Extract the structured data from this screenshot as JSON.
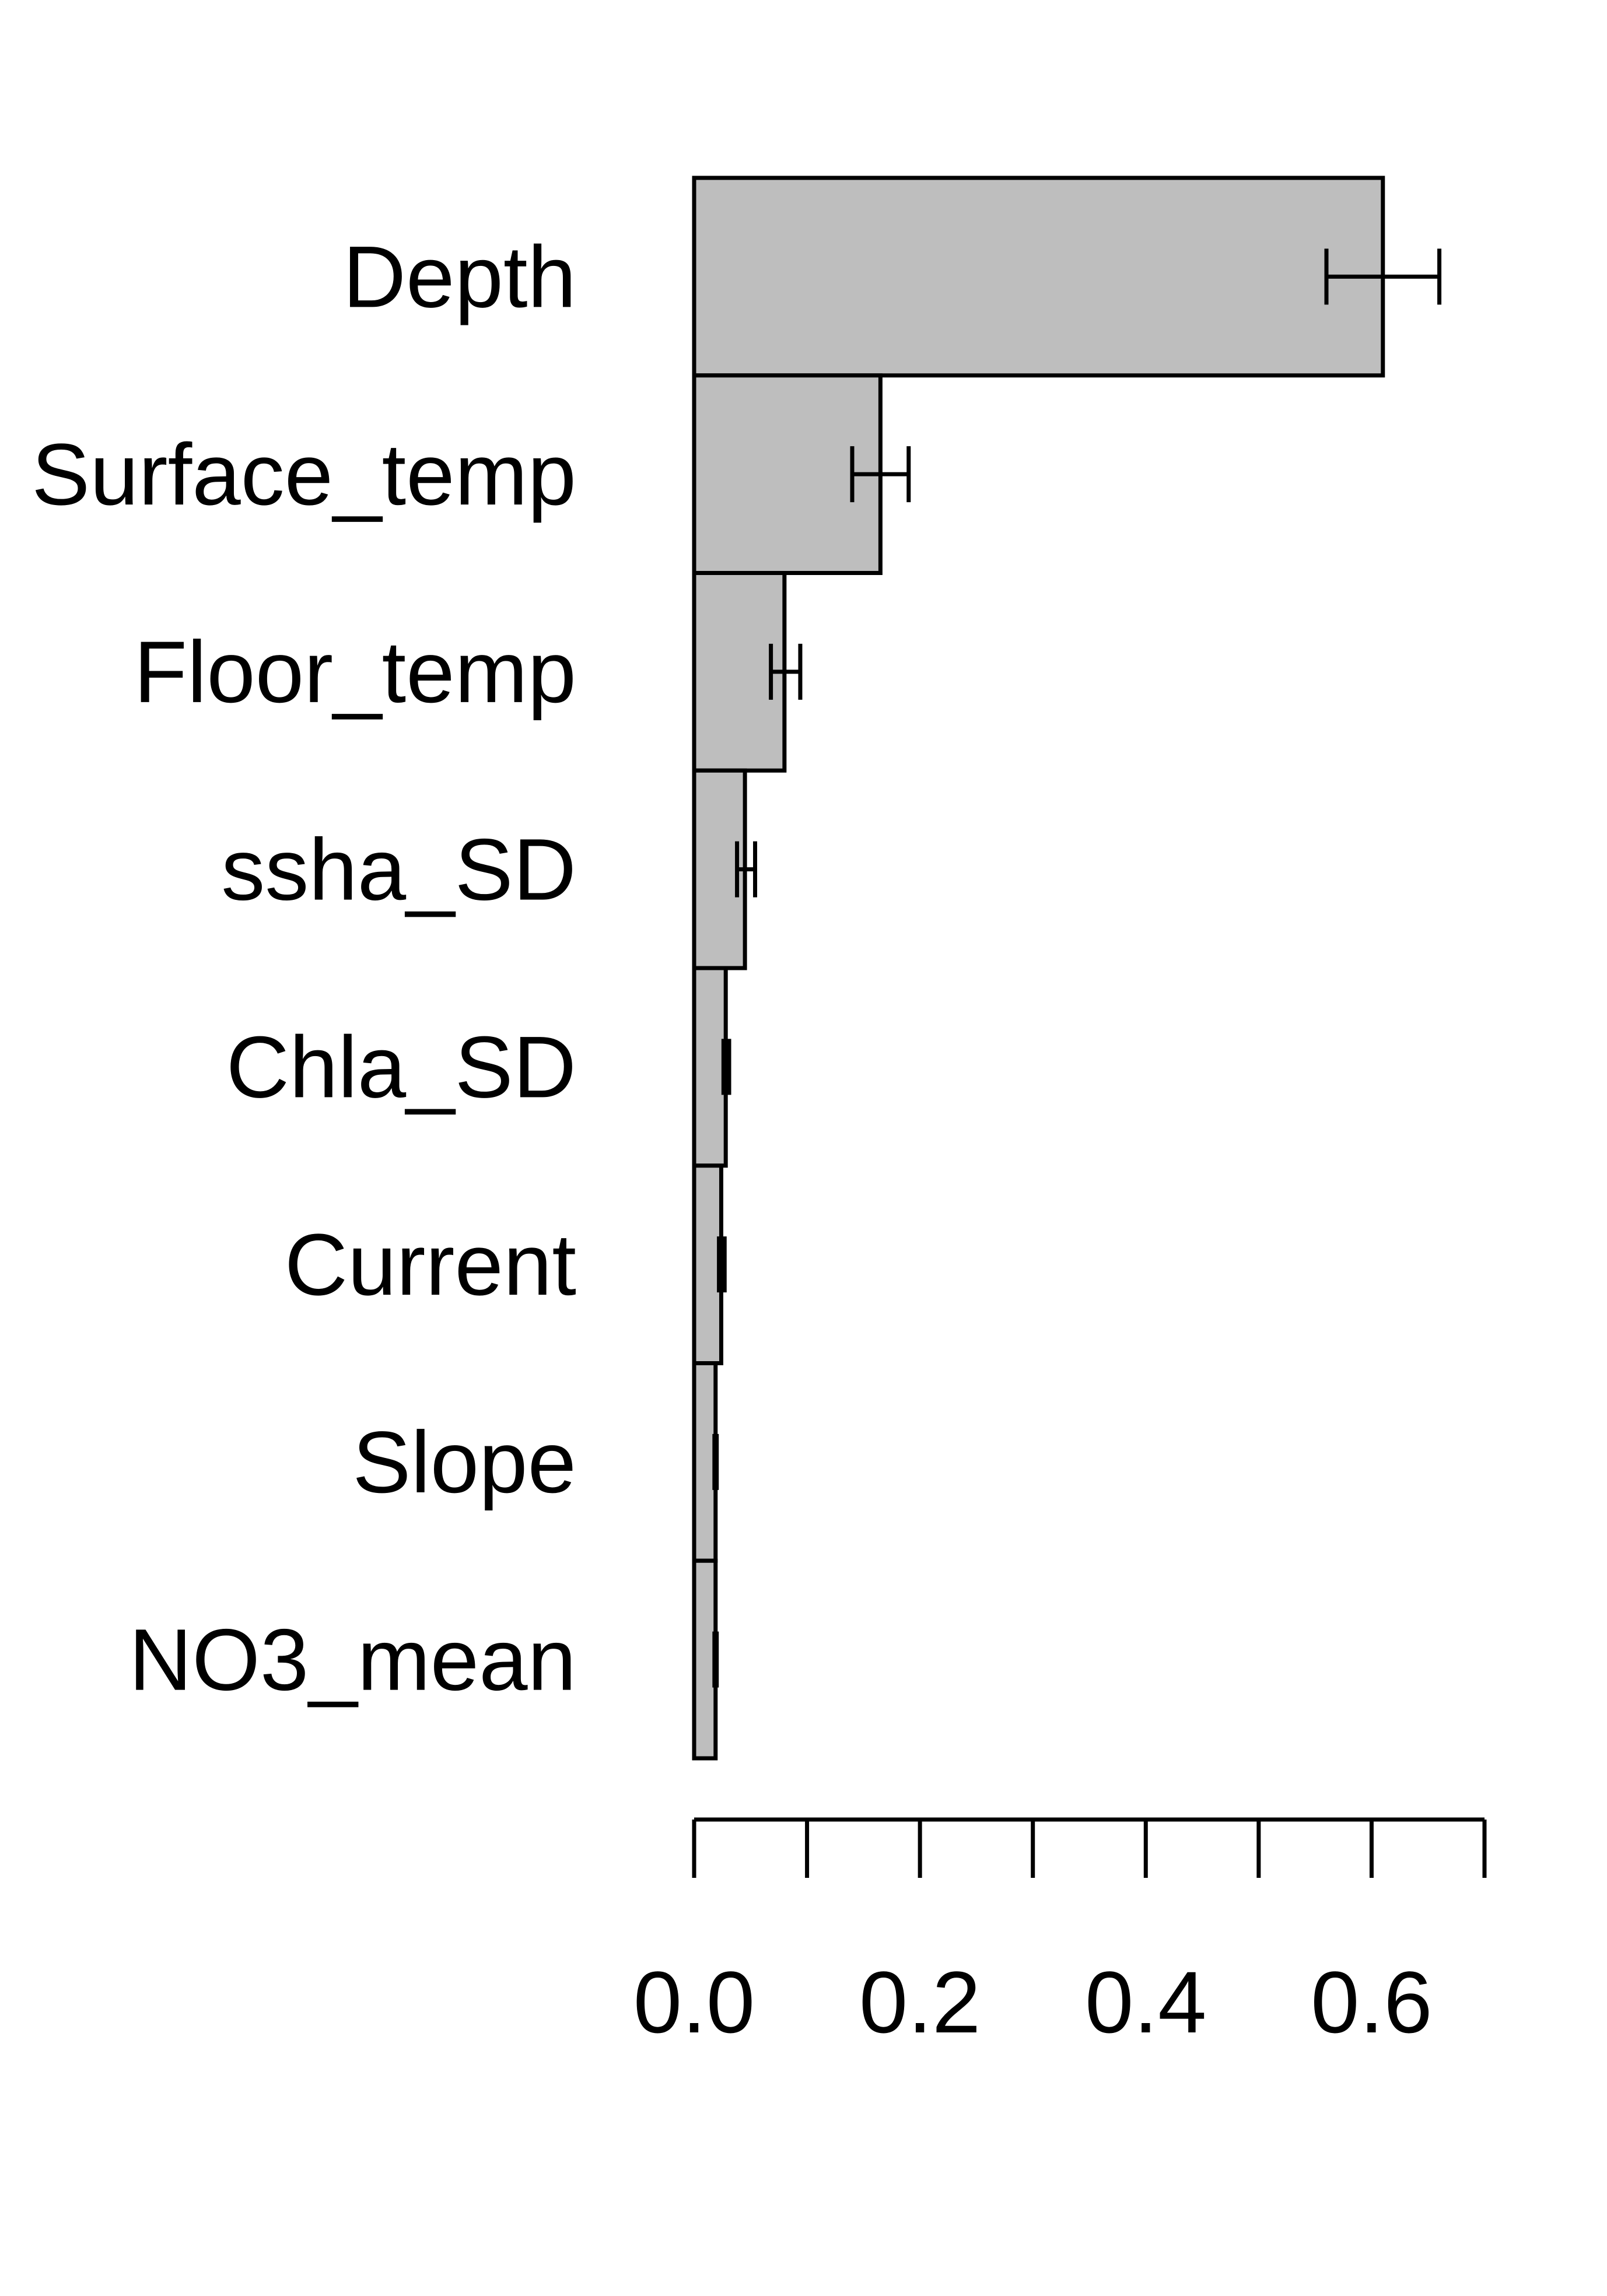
{
  "chart_data": {
    "type": "bar",
    "orientation": "horizontal",
    "categories": [
      "Depth",
      "Surface_temp",
      "Floor_temp",
      "ssha_SD",
      "Chla_SD",
      "Current",
      "Slope",
      "NO3_mean"
    ],
    "values": [
      0.61,
      0.165,
      0.08,
      0.045,
      0.028,
      0.024,
      0.019,
      0.019
    ],
    "error_low": [
      0.56,
      0.14,
      0.068,
      0.038,
      0.026,
      0.022,
      0.018,
      0.018
    ],
    "error_high": [
      0.66,
      0.19,
      0.094,
      0.054,
      0.031,
      0.027,
      0.02,
      0.02
    ],
    "title": "",
    "xlabel": "",
    "ylabel": "",
    "xlim": [
      0,
      0.7
    ],
    "ticks": [
      0,
      0.1,
      0.2,
      0.3,
      0.4,
      0.5,
      0.6,
      0.7
    ],
    "tick_labels": [
      "0.0",
      "",
      "0.2",
      "",
      "0.4",
      "",
      "0.6",
      ""
    ],
    "bar_color": "#bebebe",
    "edge_color": "#000000",
    "grid": false,
    "legend": "none"
  }
}
